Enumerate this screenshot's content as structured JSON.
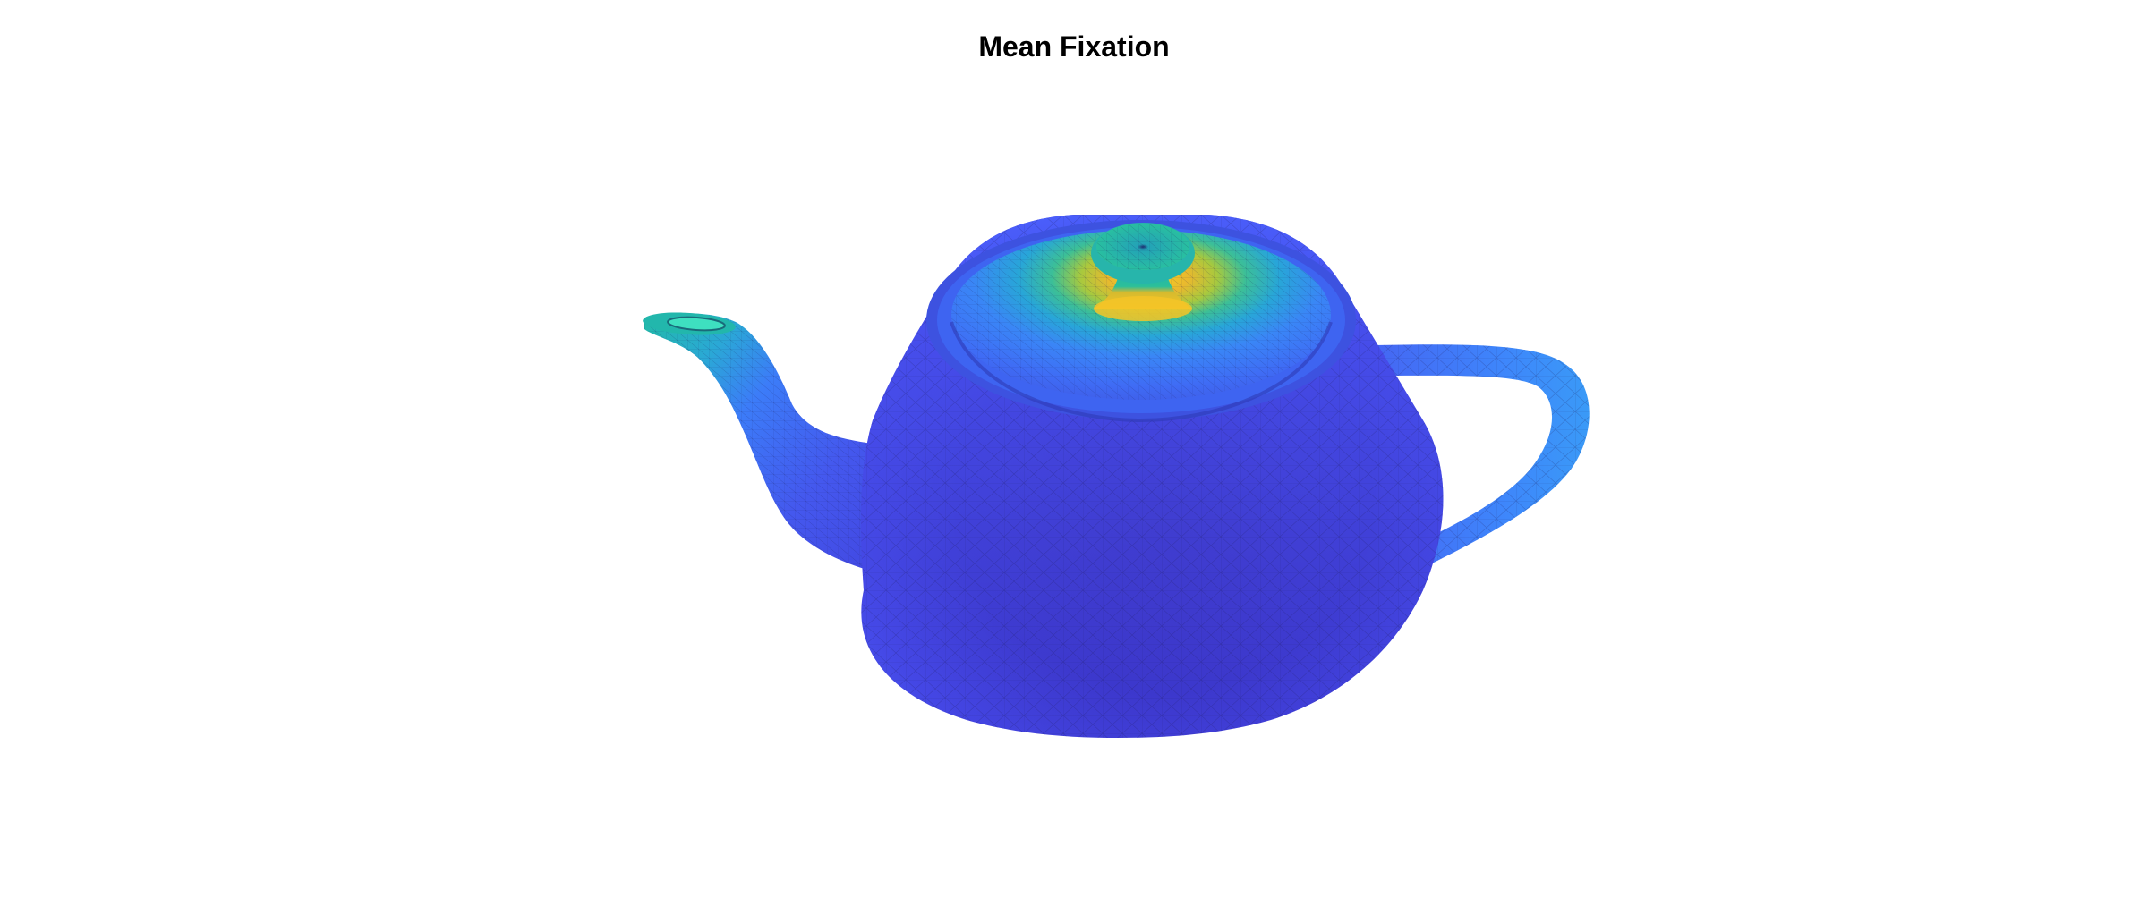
{
  "figure": {
    "title": "Mean Fixation",
    "colormap": [
      "#3e26a8",
      "#4746eb",
      "#3b79ff",
      "#1fa5d8",
      "#20bfa4",
      "#7cc94a",
      "#e0bb2f",
      "#f9d320"
    ],
    "colors": {
      "background": "#ffffff",
      "body": "#4348e6",
      "body_shadow": "#3a2fb5",
      "hotspot": "#f4c32a",
      "mesh_line": "#1c1a55"
    }
  }
}
